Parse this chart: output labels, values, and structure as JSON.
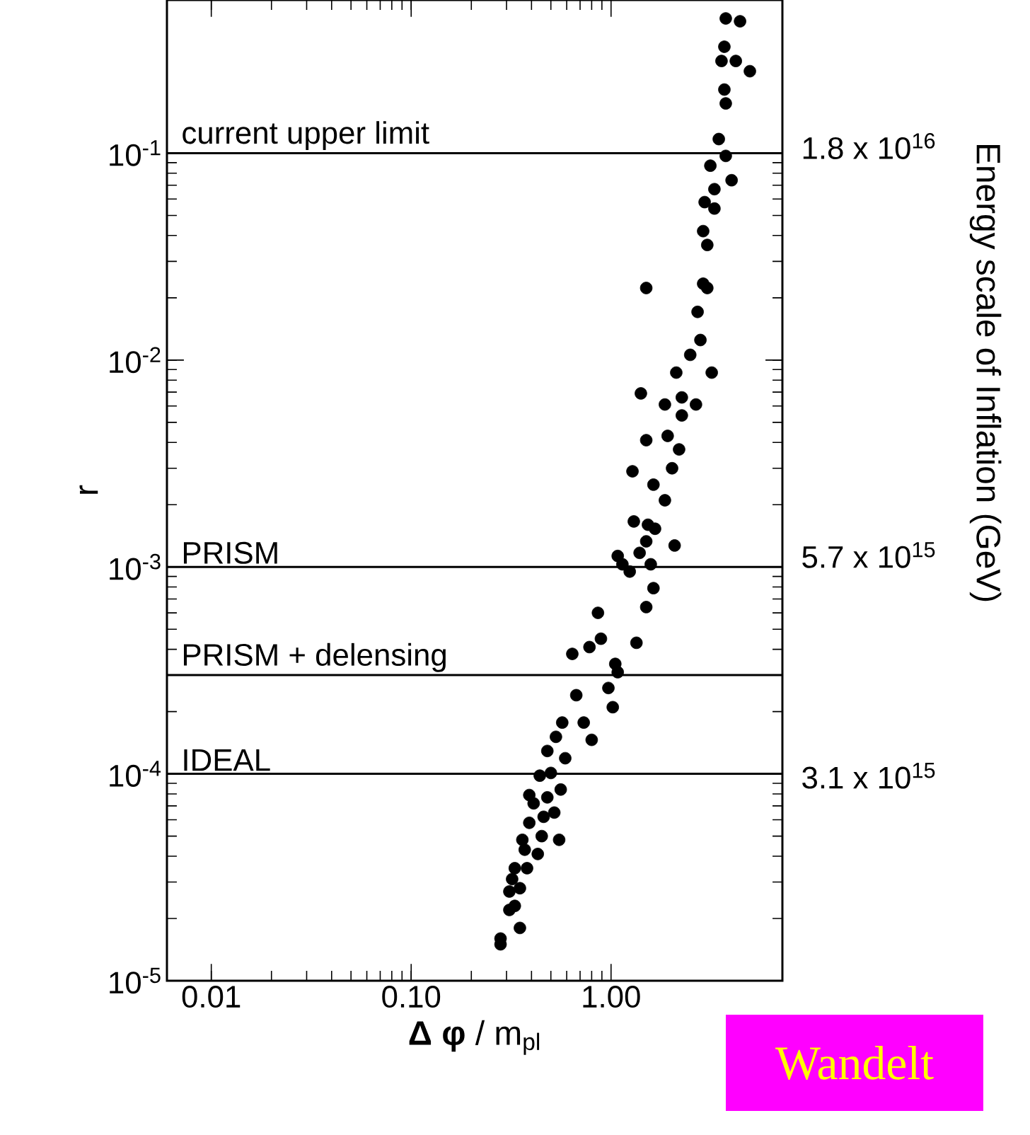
{
  "chart_data": {
    "type": "scatter",
    "xlabel": "**Δ φ** / m$_{pl}$",
    "ylabel": "r",
    "log": "xy",
    "marker": "circle",
    "color": "#000000",
    "xlim": [
      0.006,
      7.2
    ],
    "ylim": [
      1e-05,
      0.55
    ],
    "xticks": [
      0.01,
      {
        "value": 0.1,
        "label": "0.10"
      },
      {
        "value": 1,
        "label": "1.00"
      }
    ],
    "yticks": [
      {
        "value": 1e-05,
        "label": "10$^{-5}$"
      },
      {
        "value": 0.0001,
        "label": "10$^{-4}$"
      },
      {
        "value": 0.001,
        "label": "10$^{-3}$"
      },
      {
        "value": 0.01,
        "label": "10$^{-2}$"
      },
      {
        "value": 0.1,
        "label": "10$^{-1}$"
      }
    ],
    "ref_lines": [
      {
        "axis": "y",
        "value": 0.1,
        "label": "current upper limit"
      },
      {
        "axis": "y",
        "value": 0.001,
        "label": "PRISM"
      },
      {
        "axis": "y",
        "value": 0.0003,
        "label": "PRISM + delensing"
      },
      {
        "axis": "y",
        "value": 0.0001,
        "label": "IDEAL"
      }
    ],
    "annotations": [
      "1.8 x 10$^{16}$",
      "5.7 x 10$^{15}$",
      "3.1 x 10$^{15}$",
      "Energy scale of Inflation (GeV)",
      "Wandelt"
    ],
    "x": [
      3.75,
      4.42,
      3.69,
      4.21,
      4.95,
      3.57,
      3.69,
      3.75,
      3.46,
      3.75,
      4.01,
      3.14,
      3.29,
      2.94,
      3.29,
      2.89,
      3.03,
      2.89,
      3.03,
      1.5,
      2.71,
      2.8,
      2.49,
      2.12,
      3.19,
      1.41,
      1.86,
      2.26,
      2.66,
      2.26,
      1.5,
      1.92,
      2.19,
      2.02,
      1.28,
      1.63,
      1.86,
      1.3,
      1.53,
      1.66,
      1.5,
      2.08,
      1.39,
      1.08,
      1.14,
      1.24,
      1.58,
      1.63,
      1.5,
      0.86,
      1.34,
      0.89,
      0.78,
      0.64,
      1.05,
      1.08,
      0.97,
      0.67,
      1.02,
      0.57,
      0.73,
      0.8,
      0.53,
      0.59,
      0.48,
      0.44,
      0.56,
      0.48,
      0.41,
      0.52,
      0.39,
      0.55,
      0.45,
      0.36,
      0.43,
      0.38,
      0.33,
      0.35,
      0.31,
      0.33,
      0.31,
      0.35,
      0.28,
      0.28,
      0.39,
      0.46,
      0.37,
      0.5,
      0.32
    ],
    "values": [
      0.448,
      0.434,
      0.327,
      0.279,
      0.249,
      0.279,
      0.203,
      0.174,
      0.117,
      0.097,
      0.074,
      0.087,
      0.067,
      0.058,
      0.054,
      0.042,
      0.036,
      0.0234,
      0.0223,
      0.0223,
      0.0171,
      0.0125,
      0.0106,
      0.0087,
      0.0087,
      0.0069,
      0.0061,
      0.0066,
      0.0061,
      0.0054,
      0.0041,
      0.0043,
      0.0037,
      0.003,
      0.0029,
      0.0025,
      0.0021,
      0.00166,
      0.0016,
      0.00153,
      0.00133,
      0.00127,
      0.00117,
      0.00113,
      0.00103,
      0.00095,
      0.00103,
      0.00079,
      0.00064,
      0.0006,
      0.00043,
      0.00045,
      0.00041,
      0.00038,
      0.00034,
      0.00031,
      0.00026,
      0.00024,
      0.00021,
      0.000177,
      0.000177,
      0.000146,
      0.000151,
      0.000119,
      0.000129,
      9.8e-05,
      8.4e-05,
      7.7e-05,
      7.2e-05,
      6.5e-05,
      5.8e-05,
      4.8e-05,
      5e-05,
      4.8e-05,
      4.1e-05,
      3.5e-05,
      3.5e-05,
      2.8e-05,
      2.7e-05,
      2.3e-05,
      2.2e-05,
      1.8e-05,
      1.6e-05,
      1.5e-05,
      7.9e-05,
      6.2e-05,
      4.3e-05,
      0.000101,
      3.1e-05
    ]
  }
}
